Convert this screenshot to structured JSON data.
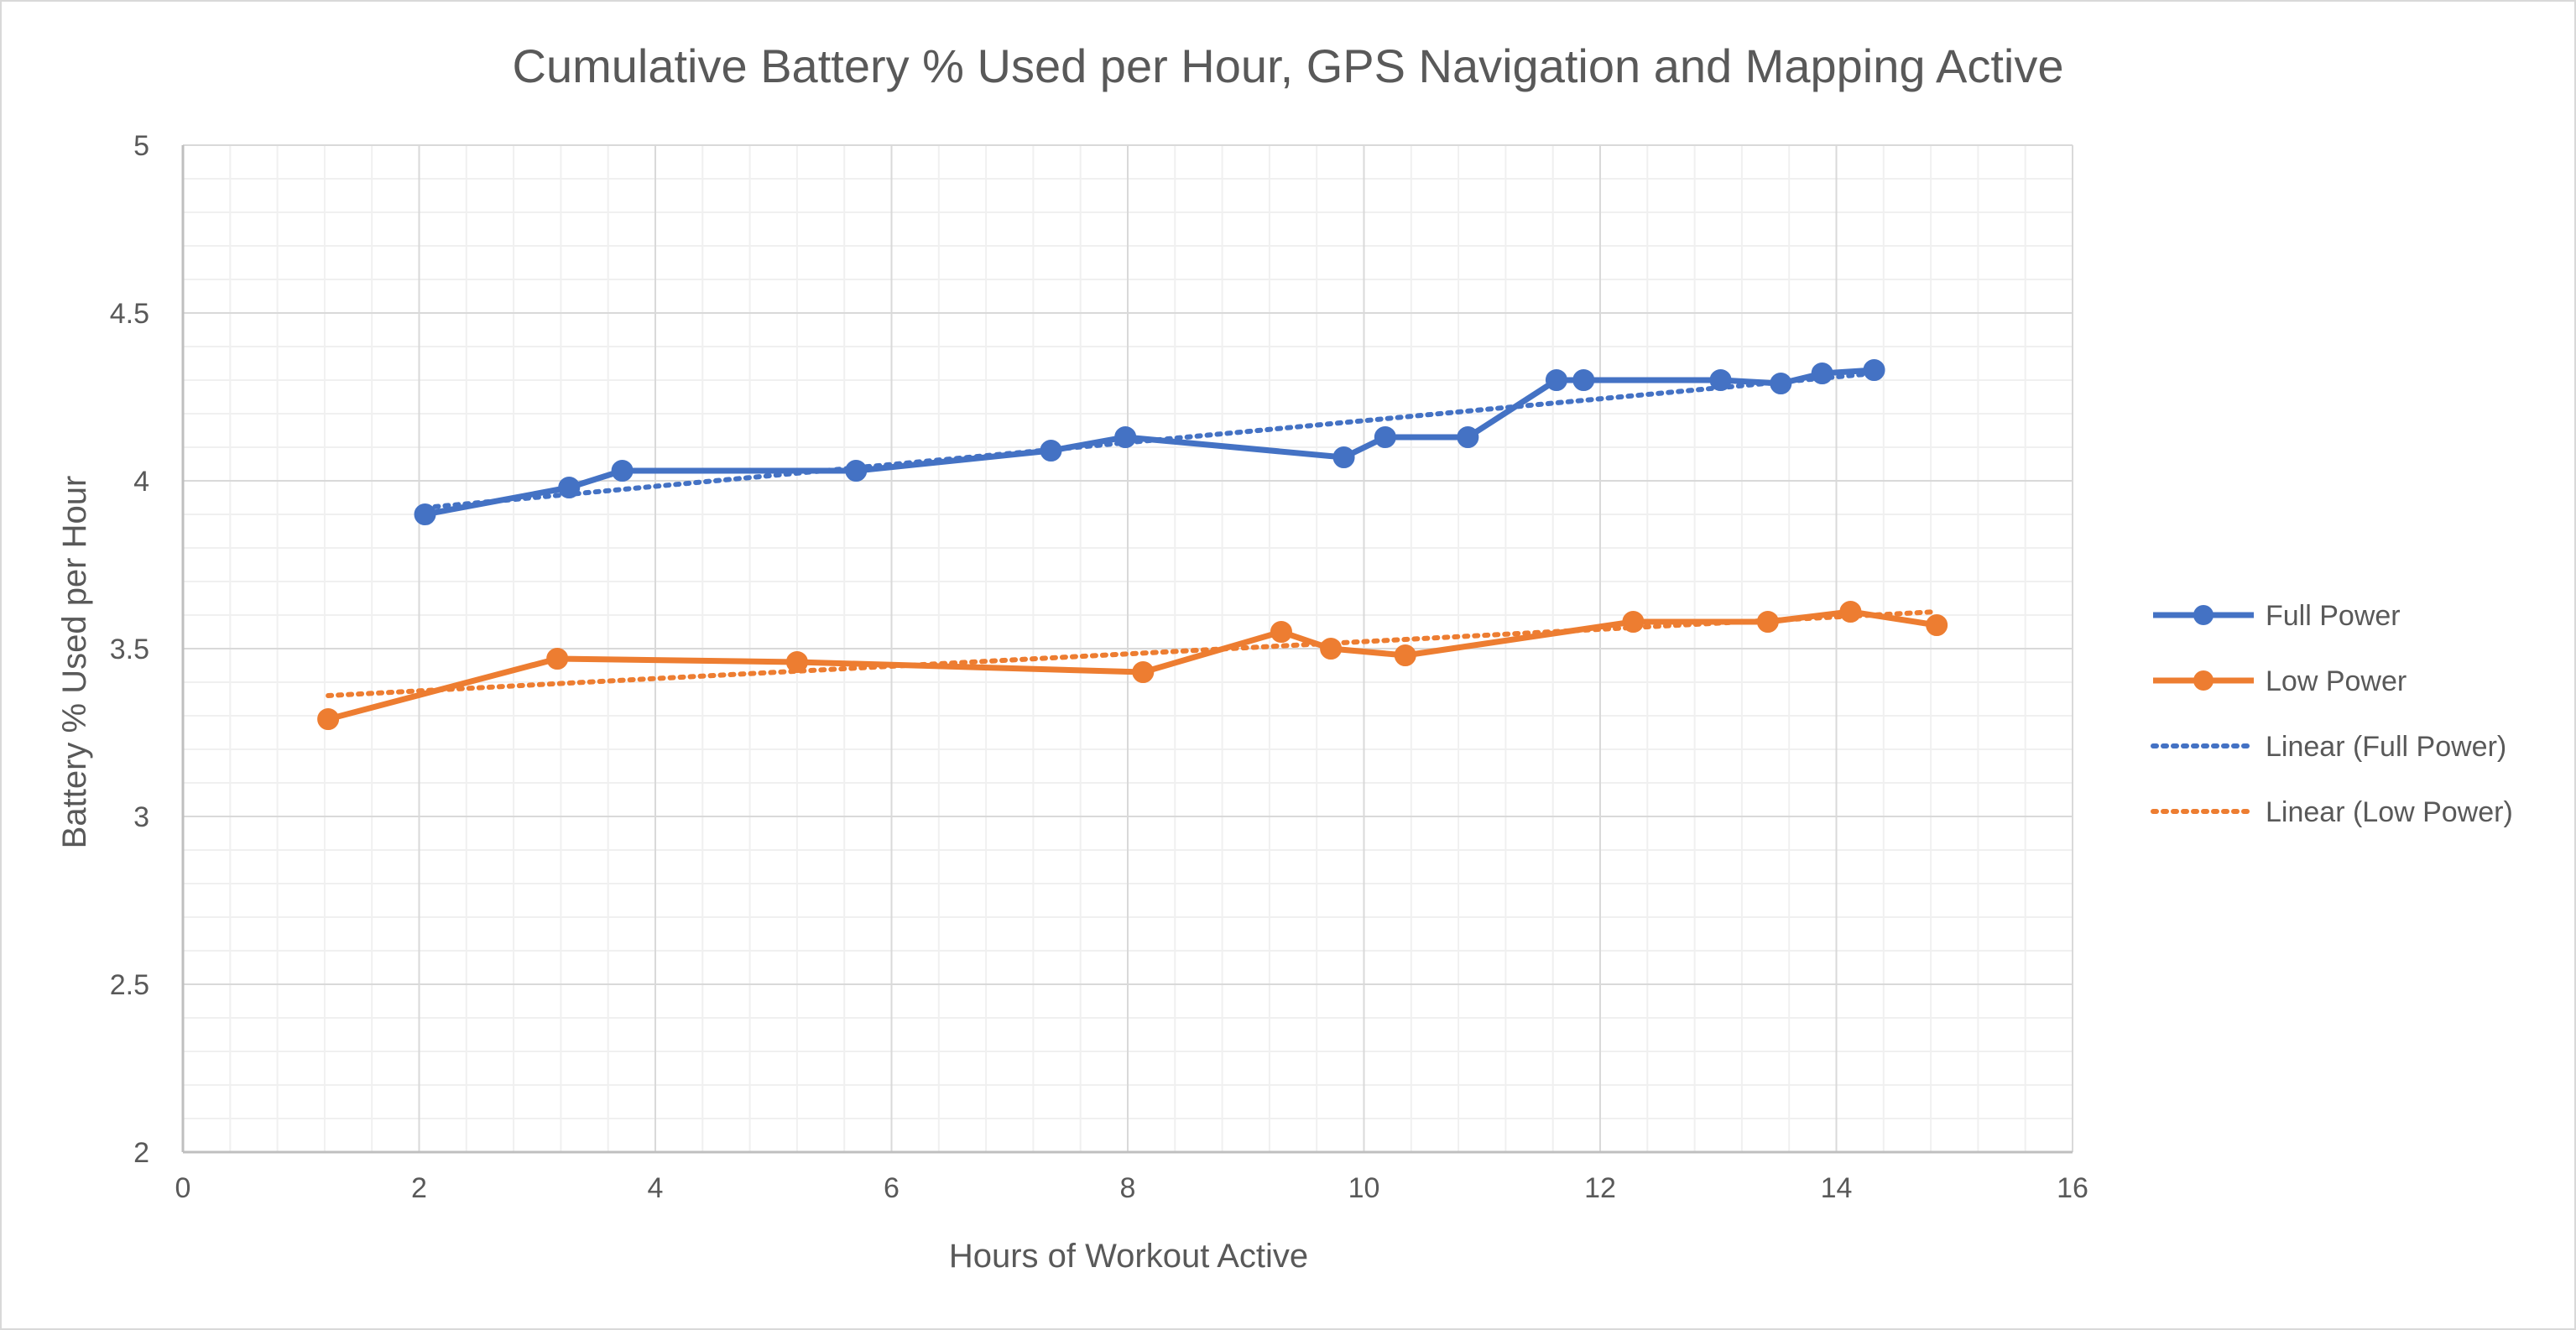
{
  "chart_data": {
    "type": "scatter",
    "title": "Cumulative Battery % Used per Hour, GPS Navigation and Mapping Active",
    "xlabel": "Hours of Workout Active",
    "ylabel": "Battery % Used per Hour",
    "xlim": [
      0,
      16
    ],
    "ylim": [
      2,
      5
    ],
    "x_ticks": [
      0,
      2,
      4,
      6,
      8,
      10,
      12,
      14,
      16
    ],
    "y_ticks": [
      2,
      2.5,
      3,
      3.5,
      4,
      4.5,
      5
    ],
    "x_tick_labels": [
      "0",
      "2",
      "4",
      "6",
      "8",
      "10",
      "12",
      "14",
      "16"
    ],
    "y_tick_labels": [
      "2",
      "2.5",
      "3",
      "3.5",
      "4",
      "4.5",
      "5"
    ],
    "grid": true,
    "legend_position": "right",
    "series": [
      {
        "name": "Full Power",
        "color": "#4472c4",
        "style": "line-markers",
        "x": [
          2.05,
          3.27,
          3.72,
          5.7,
          7.35,
          7.98,
          9.83,
          10.18,
          10.88,
          11.63,
          11.86,
          13.02,
          13.53,
          13.88,
          14.32
        ],
        "y": [
          3.9,
          3.98,
          4.03,
          4.03,
          4.09,
          4.13,
          4.07,
          4.13,
          4.13,
          4.3,
          4.3,
          4.3,
          4.29,
          4.32,
          4.33
        ]
      },
      {
        "name": "Low Power",
        "color": "#ed7d31",
        "style": "line-markers",
        "x": [
          1.23,
          3.17,
          5.2,
          8.13,
          9.3,
          9.72,
          10.35,
          12.28,
          13.42,
          14.12,
          14.85
        ],
        "y": [
          3.29,
          3.47,
          3.46,
          3.43,
          3.55,
          3.5,
          3.48,
          3.58,
          3.58,
          3.61,
          3.57
        ]
      }
    ],
    "trendlines": [
      {
        "name": "Linear (Full Power)",
        "color": "#4472c4",
        "x": [
          2.05,
          14.32
        ],
        "y": [
          3.92,
          4.32
        ]
      },
      {
        "name": "Linear (Low Power)",
        "color": "#ed7d31",
        "x": [
          1.23,
          14.85
        ],
        "y": [
          3.36,
          3.61
        ]
      }
    ]
  }
}
